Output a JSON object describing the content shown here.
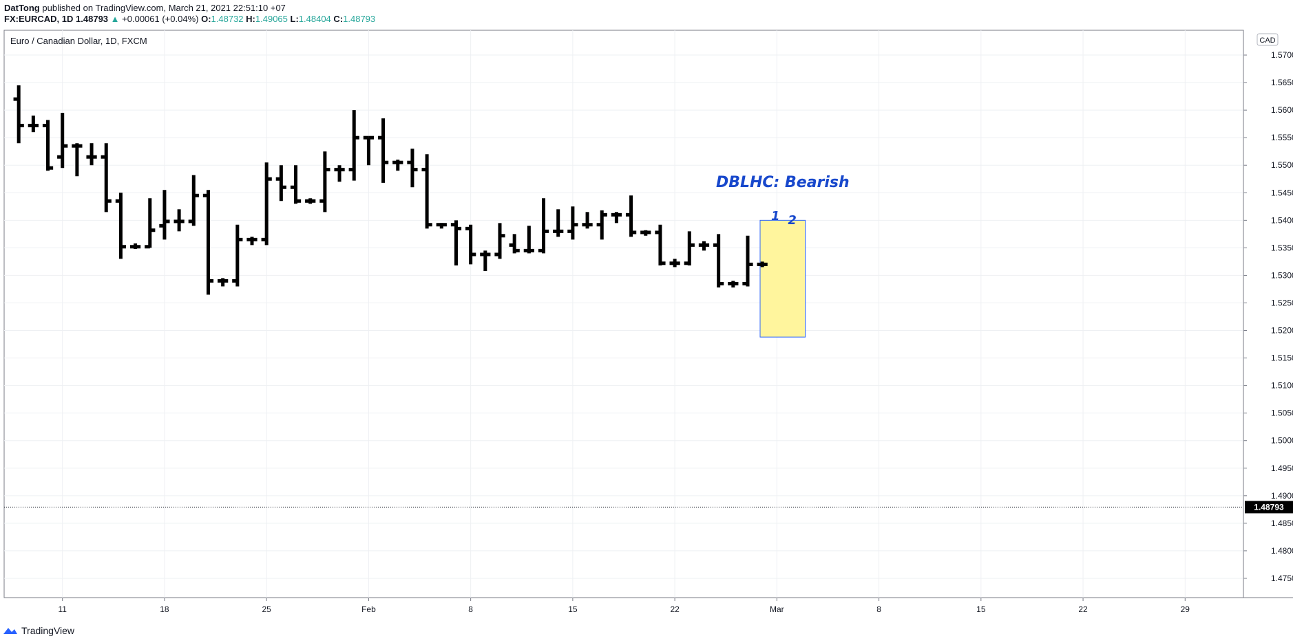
{
  "header": {
    "author": "DatTong",
    "published_text": "published on TradingView.com, March 21, 2021 22:51:10 +07",
    "symbol": "FX:EURCAD, 1D",
    "last": "1.48793",
    "change": "+0.00061 (+0.04%)",
    "o_label": "O:",
    "o_value": "1.48732",
    "h_label": "H:",
    "h_value": "1.49065",
    "l_label": "L:",
    "l_value": "1.48404",
    "c_label": "C:",
    "c_value": "1.48793"
  },
  "footer": {
    "brand": "TradingView"
  },
  "colors": {
    "bar": "#000000",
    "annotation": "#1848cc",
    "highlight_fill": "#fff59d",
    "highlight_border": "#2962ff",
    "up": "#26a69a"
  },
  "chart_data": {
    "type": "ohlc-bar",
    "title": "Euro / Canadian Dollar, 1D, FXCM",
    "currency_label": "CAD",
    "ylim": [
      1.4715,
      1.5745
    ],
    "y_ticks": [
      "1.57000",
      "1.56500",
      "1.56000",
      "1.55500",
      "1.55000",
      "1.54500",
      "1.54000",
      "1.53500",
      "1.53000",
      "1.52500",
      "1.52000",
      "1.51500",
      "1.51000",
      "1.50500",
      "1.50000",
      "1.49500",
      "1.49000",
      "1.48500",
      "1.48000",
      "1.47500"
    ],
    "x_ticks": [
      {
        "label": "11",
        "date": "2021-01-11"
      },
      {
        "label": "18",
        "date": "2021-01-18"
      },
      {
        "label": "25",
        "date": "2021-01-25"
      },
      {
        "label": "Feb",
        "date": "2021-02-01"
      },
      {
        "label": "8",
        "date": "2021-02-08"
      },
      {
        "label": "15",
        "date": "2021-02-15"
      },
      {
        "label": "22",
        "date": "2021-02-22"
      },
      {
        "label": "Mar",
        "date": "2021-03-01"
      },
      {
        "label": "8",
        "date": "2021-03-08"
      },
      {
        "label": "15",
        "date": "2021-03-15"
      },
      {
        "label": "22",
        "date": "2021-03-22"
      },
      {
        "label": "29",
        "date": "2021-03-29"
      }
    ],
    "x_range": [
      "2021-01-07",
      "2021-04-02"
    ],
    "last_price": 1.48793,
    "last_price_label": "1.48793",
    "bars": [
      {
        "date": "2021-01-08",
        "o": 1.562,
        "h": 1.5645,
        "l": 1.554,
        "c": 1.5572
      },
      {
        "date": "2021-01-09",
        "o": 1.5572,
        "h": 1.559,
        "l": 1.556,
        "c": 1.5572
      },
      {
        "date": "2021-01-10",
        "o": 1.5572,
        "h": 1.5582,
        "l": 1.549,
        "c": 1.5495
      },
      {
        "date": "2021-01-11",
        "o": 1.5515,
        "h": 1.5595,
        "l": 1.5495,
        "c": 1.5535
      },
      {
        "date": "2021-01-12",
        "o": 1.5535,
        "h": 1.554,
        "l": 1.548,
        "c": 1.5535
      },
      {
        "date": "2021-01-13",
        "o": 1.5515,
        "h": 1.554,
        "l": 1.55,
        "c": 1.5515
      },
      {
        "date": "2021-01-14",
        "o": 1.5515,
        "h": 1.554,
        "l": 1.5415,
        "c": 1.5435
      },
      {
        "date": "2021-01-15",
        "o": 1.5435,
        "h": 1.545,
        "l": 1.533,
        "c": 1.5352
      },
      {
        "date": "2021-01-16",
        "o": 1.5352,
        "h": 1.5358,
        "l": 1.5348,
        "c": 1.5352
      },
      {
        "date": "2021-01-17",
        "o": 1.5352,
        "h": 1.544,
        "l": 1.535,
        "c": 1.5382
      },
      {
        "date": "2021-01-18",
        "o": 1.539,
        "h": 1.5455,
        "l": 1.5365,
        "c": 1.5398
      },
      {
        "date": "2021-01-19",
        "o": 1.5398,
        "h": 1.542,
        "l": 1.538,
        "c": 1.5398
      },
      {
        "date": "2021-01-20",
        "o": 1.5398,
        "h": 1.5482,
        "l": 1.539,
        "c": 1.5445
      },
      {
        "date": "2021-01-21",
        "o": 1.5445,
        "h": 1.5455,
        "l": 1.5265,
        "c": 1.529
      },
      {
        "date": "2021-01-22",
        "o": 1.529,
        "h": 1.5295,
        "l": 1.528,
        "c": 1.529
      },
      {
        "date": "2021-01-23",
        "o": 1.529,
        "h": 1.5392,
        "l": 1.528,
        "c": 1.5365
      },
      {
        "date": "2021-01-24",
        "o": 1.5365,
        "h": 1.537,
        "l": 1.5355,
        "c": 1.5365
      },
      {
        "date": "2021-01-25",
        "o": 1.5365,
        "h": 1.5505,
        "l": 1.5355,
        "c": 1.5475
      },
      {
        "date": "2021-01-26",
        "o": 1.5475,
        "h": 1.55,
        "l": 1.5435,
        "c": 1.546
      },
      {
        "date": "2021-01-27",
        "o": 1.546,
        "h": 1.55,
        "l": 1.543,
        "c": 1.5435
      },
      {
        "date": "2021-01-28",
        "o": 1.5435,
        "h": 1.544,
        "l": 1.543,
        "c": 1.5435
      },
      {
        "date": "2021-01-29",
        "o": 1.5435,
        "h": 1.5525,
        "l": 1.5415,
        "c": 1.5492
      },
      {
        "date": "2021-01-30",
        "o": 1.5492,
        "h": 1.55,
        "l": 1.547,
        "c": 1.5492
      },
      {
        "date": "2021-01-31",
        "o": 1.5492,
        "h": 1.56,
        "l": 1.5472,
        "c": 1.555
      },
      {
        "date": "2021-02-01",
        "o": 1.555,
        "h": 1.555,
        "l": 1.55,
        "c": 1.555
      },
      {
        "date": "2021-02-02",
        "o": 1.555,
        "h": 1.5585,
        "l": 1.5468,
        "c": 1.5505
      },
      {
        "date": "2021-02-03",
        "o": 1.5505,
        "h": 1.551,
        "l": 1.549,
        "c": 1.5505
      },
      {
        "date": "2021-02-04",
        "o": 1.5505,
        "h": 1.553,
        "l": 1.546,
        "c": 1.5492
      },
      {
        "date": "2021-02-05",
        "o": 1.5492,
        "h": 1.552,
        "l": 1.5385,
        "c": 1.5392
      },
      {
        "date": "2021-02-06",
        "o": 1.5392,
        "h": 1.5395,
        "l": 1.5385,
        "c": 1.5392
      },
      {
        "date": "2021-02-07",
        "o": 1.5392,
        "h": 1.54,
        "l": 1.5318,
        "c": 1.5385
      },
      {
        "date": "2021-02-08",
        "o": 1.5385,
        "h": 1.5392,
        "l": 1.532,
        "c": 1.5338
      },
      {
        "date": "2021-02-09",
        "o": 1.5338,
        "h": 1.5345,
        "l": 1.5308,
        "c": 1.5338
      },
      {
        "date": "2021-02-10",
        "o": 1.5338,
        "h": 1.5395,
        "l": 1.533,
        "c": 1.5372
      },
      {
        "date": "2021-02-11",
        "o": 1.5355,
        "h": 1.5375,
        "l": 1.534,
        "c": 1.5345
      },
      {
        "date": "2021-02-12",
        "o": 1.5345,
        "h": 1.539,
        "l": 1.534,
        "c": 1.5345
      },
      {
        "date": "2021-02-13",
        "o": 1.5345,
        "h": 1.544,
        "l": 1.534,
        "c": 1.538
      },
      {
        "date": "2021-02-14",
        "o": 1.538,
        "h": 1.542,
        "l": 1.537,
        "c": 1.538
      },
      {
        "date": "2021-02-15",
        "o": 1.538,
        "h": 1.5425,
        "l": 1.5365,
        "c": 1.5392
      },
      {
        "date": "2021-02-16",
        "o": 1.5392,
        "h": 1.5415,
        "l": 1.5385,
        "c": 1.5392
      },
      {
        "date": "2021-02-17",
        "o": 1.5392,
        "h": 1.5418,
        "l": 1.5365,
        "c": 1.541
      },
      {
        "date": "2021-02-18",
        "o": 1.541,
        "h": 1.5415,
        "l": 1.5395,
        "c": 1.541
      },
      {
        "date": "2021-02-19",
        "o": 1.541,
        "h": 1.5445,
        "l": 1.537,
        "c": 1.5378
      },
      {
        "date": "2021-02-20",
        "o": 1.5378,
        "h": 1.5382,
        "l": 1.5372,
        "c": 1.5378
      },
      {
        "date": "2021-02-21",
        "o": 1.5378,
        "h": 1.5392,
        "l": 1.5318,
        "c": 1.5322
      },
      {
        "date": "2021-02-22",
        "o": 1.5322,
        "h": 1.533,
        "l": 1.5315,
        "c": 1.5322
      },
      {
        "date": "2021-02-23",
        "o": 1.5322,
        "h": 1.538,
        "l": 1.5318,
        "c": 1.5355
      },
      {
        "date": "2021-02-24",
        "o": 1.5355,
        "h": 1.5362,
        "l": 1.5345,
        "c": 1.5355
      },
      {
        "date": "2021-02-25",
        "o": 1.5355,
        "h": 1.5375,
        "l": 1.5278,
        "c": 1.5285
      },
      {
        "date": "2021-02-26",
        "o": 1.5285,
        "h": 1.529,
        "l": 1.5278,
        "c": 1.5285
      },
      {
        "date": "2021-02-27",
        "o": 1.5285,
        "h": 1.5372,
        "l": 1.528,
        "c": 1.532
      },
      {
        "date": "2021-02-28",
        "o": 1.532,
        "h": 1.5325,
        "l": 1.5315,
        "c": 1.532
      }
    ],
    "highlight": {
      "x_start": "2021-02-28",
      "x_end": "2021-03-03",
      "y_top": 1.54,
      "y_bottom": 1.5188,
      "labels": [
        "1",
        "2"
      ]
    },
    "annotation": "DBLHC: Bearish"
  }
}
